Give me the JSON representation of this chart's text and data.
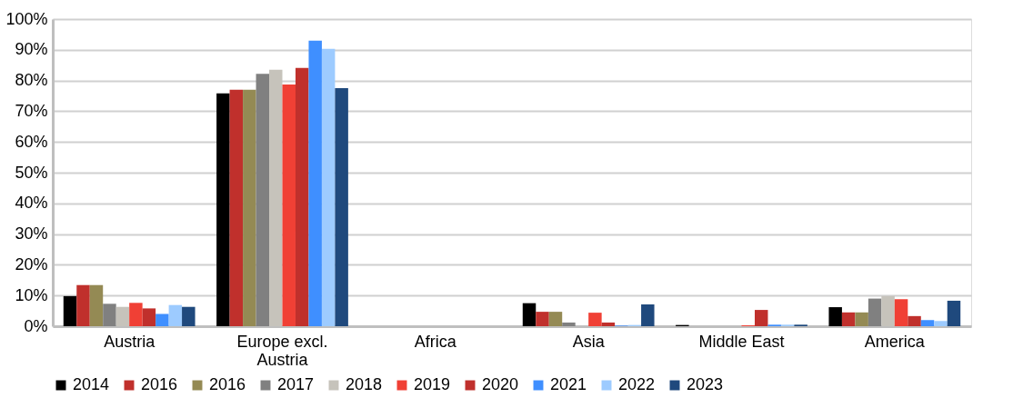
{
  "chart_data": {
    "type": "bar",
    "categories": [
      "Austria",
      "Europe excl. Austria",
      "Africa",
      "Asia",
      "Middle East",
      "America"
    ],
    "series": [
      {
        "name": "2014",
        "color": "#000000",
        "values": [
          9.8,
          75.8,
          0,
          7.5,
          0.4,
          6.2
        ]
      },
      {
        "name": "2016",
        "color": "#c0302c",
        "values": [
          13.4,
          77.0,
          0,
          4.7,
          0,
          4.5
        ]
      },
      {
        "name": "2016",
        "color": "#948a54",
        "values": [
          13.4,
          77.0,
          0,
          4.7,
          0,
          4.5
        ]
      },
      {
        "name": "2017",
        "color": "#808080",
        "values": [
          7.3,
          82.2,
          0,
          1.2,
          0,
          9.0
        ]
      },
      {
        "name": "2018",
        "color": "#c6c3bb",
        "values": [
          6.3,
          83.5,
          0,
          0,
          0,
          9.8
        ]
      },
      {
        "name": "2019",
        "color": "#f04035",
        "values": [
          7.6,
          78.7,
          0,
          4.4,
          0.3,
          8.8
        ]
      },
      {
        "name": "2020",
        "color": "#c0302c",
        "values": [
          5.8,
          84.1,
          0,
          1.2,
          5.3,
          3.3
        ]
      },
      {
        "name": "2021",
        "color": "#3f8fff",
        "values": [
          4.0,
          93.0,
          0,
          0.2,
          0.5,
          2.0
        ]
      },
      {
        "name": "2022",
        "color": "#9dcbff",
        "values": [
          6.9,
          90.3,
          0,
          0.4,
          0.5,
          1.7
        ]
      },
      {
        "name": "2023",
        "color": "#1f497d",
        "values": [
          6.3,
          77.5,
          0,
          7.1,
          0.5,
          8.3
        ]
      }
    ],
    "ylim": [
      0,
      100
    ],
    "yticks": [
      {
        "value": 0,
        "label": "0%"
      },
      {
        "value": 10,
        "label": "10%"
      },
      {
        "value": 20,
        "label": "20%"
      },
      {
        "value": 30,
        "label": "30%"
      },
      {
        "value": 40,
        "label": "40%"
      },
      {
        "value": 50,
        "label": "50%"
      },
      {
        "value": 60,
        "label": "60%"
      },
      {
        "value": 70,
        "label": "70%"
      },
      {
        "value": 80,
        "label": "80%"
      },
      {
        "value": 90,
        "label": "90%"
      },
      {
        "value": 100,
        "label": "100%"
      }
    ],
    "grid": "y",
    "legend": "bottom"
  }
}
